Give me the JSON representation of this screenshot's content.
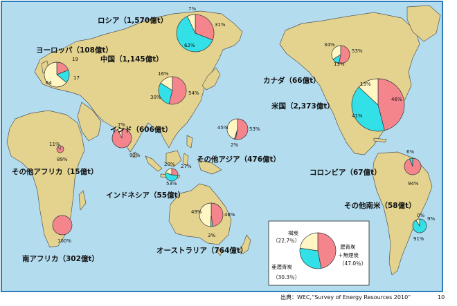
{
  "colors": {
    "ocean": "#b3dcef",
    "land": "#e3d38e",
    "anthracite": "#f4858d",
    "subbituminous": "#33e0e8",
    "lignite": "#fff6c3",
    "pie_stroke": "#333333"
  },
  "source_text": "出典：WEC,“Survey of Energy Resources 2010”",
  "page_number": "10",
  "legend": {
    "lignite_label": "褐炭",
    "lignite_pct": "（22.7％）",
    "subbit_label": "亜瀝青炭",
    "subbit_pct": "（30.3％）",
    "anthracite_label_1": "瀝青炭",
    "anthracite_label_2": "＋無煙炭",
    "anthracite_pct": "（47.0％）",
    "values": {
      "anthracite": 47.0,
      "subbituminous": 30.3,
      "lignite": 22.7
    }
  },
  "regions": [
    {
      "id": "russia",
      "label": "ロシア（1,570億t）",
      "values": {
        "anthracite": 31,
        "subbituminous": 62,
        "lignite": 7
      },
      "pct_labels": [
        "31%",
        "62%",
        "7%"
      ]
    },
    {
      "id": "europe",
      "label": "ヨーロッパ（108億t）",
      "values": {
        "anthracite": 19,
        "subbituminous": 17,
        "lignite": 64
      },
      "pct_labels": [
        "19",
        "17",
        "64"
      ]
    },
    {
      "id": "china",
      "label": "中国（1,145億t）",
      "values": {
        "anthracite": 54,
        "subbituminous": 30,
        "lignite": 16
      },
      "pct_labels": [
        "54%",
        "30%",
        "16%"
      ]
    },
    {
      "id": "india",
      "label": "インド（606億t）",
      "values": {
        "anthracite": 93,
        "subbituminous": 0,
        "lignite": 7
      },
      "pct_labels": [
        "93%",
        "7%"
      ]
    },
    {
      "id": "other_asia",
      "label": "その他アジア（476億t）",
      "values": {
        "anthracite": 53,
        "subbituminous": 2,
        "lignite": 45
      },
      "pct_labels": [
        "53%",
        "2%",
        "45%"
      ]
    },
    {
      "id": "indonesia",
      "label": "インドネシア（55億t）",
      "values": {
        "anthracite": 27,
        "subbituminous": 53,
        "lignite": 20
      },
      "pct_labels": [
        "27%",
        "53%",
        "20%"
      ]
    },
    {
      "id": "australia",
      "label": "オーストラリア（764億t）",
      "values": {
        "anthracite": 48,
        "subbituminous": 3,
        "lignite": 49
      },
      "pct_labels": [
        "48%",
        "3%",
        "49%"
      ]
    },
    {
      "id": "other_africa",
      "label": "その他アフリカ（15億t）",
      "values": {
        "anthracite": 89,
        "subbituminous": 0,
        "lignite": 11
      },
      "pct_labels": [
        "89%",
        "11%"
      ]
    },
    {
      "id": "south_africa",
      "label": "南アフリカ（302億t）",
      "values": {
        "anthracite": 100,
        "subbituminous": 0,
        "lignite": 0
      },
      "pct_labels": [
        "100%"
      ]
    },
    {
      "id": "canada",
      "label": "カナダ（66億t）",
      "values": {
        "anthracite": 53,
        "subbituminous": 13,
        "lignite": 34
      },
      "pct_labels": [
        "53%",
        "13%",
        "34%"
      ]
    },
    {
      "id": "usa",
      "label": "米国（2,373億t）",
      "values": {
        "anthracite": 46,
        "subbituminous": 41,
        "lignite": 13
      },
      "pct_labels": [
        "46%",
        "41%",
        "13%"
      ]
    },
    {
      "id": "colombia",
      "label": "コロンビア（67億t）",
      "values": {
        "anthracite": 94,
        "subbituminous": 6,
        "lignite": 0
      },
      "pct_labels": [
        "94%",
        "6%"
      ]
    },
    {
      "id": "other_south_america",
      "label": "その他南米（58億t）",
      "values": {
        "anthracite": 0,
        "subbituminous": 91,
        "lignite": 9
      },
      "pct_labels": [
        "91%",
        "9%",
        "0%"
      ]
    }
  ]
}
